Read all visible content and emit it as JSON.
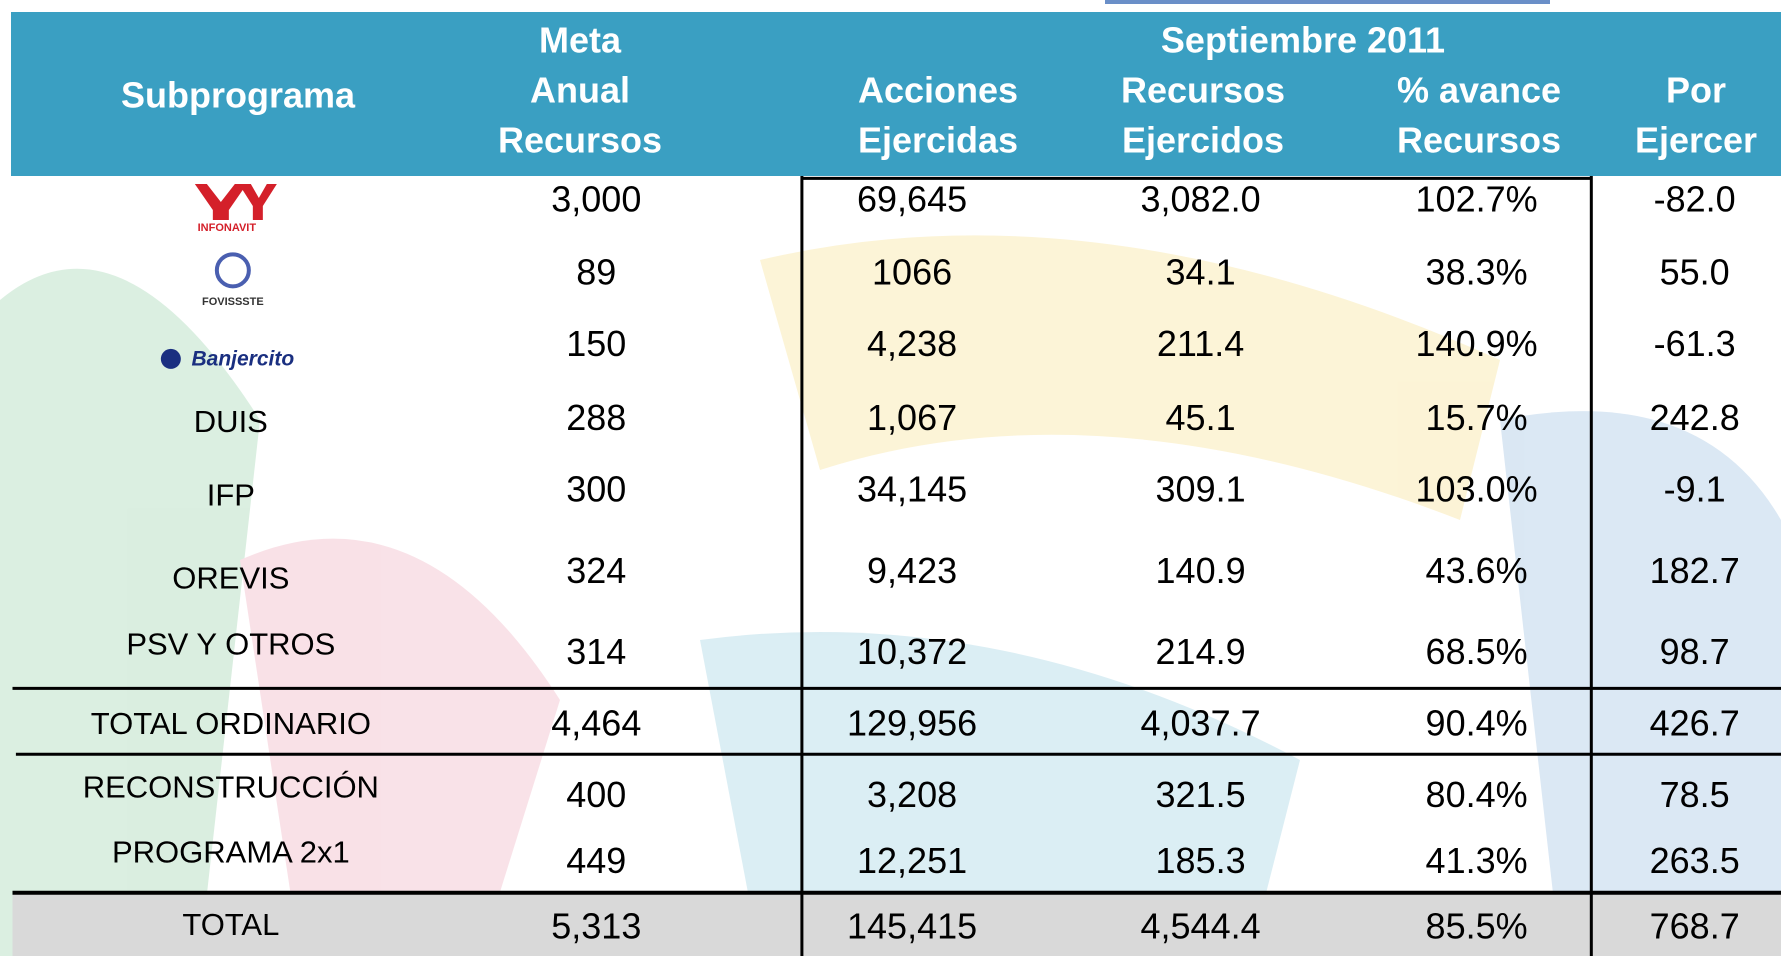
{
  "header": {
    "subprograma": "Subprograma",
    "meta": [
      "Meta",
      "Anual",
      "Recursos"
    ],
    "group": "Septiembre 2011",
    "acciones": [
      "Acciones",
      "Ejercidas"
    ],
    "recursos": [
      "Recursos",
      "Ejercidos"
    ],
    "avance": [
      "% avance",
      "Recursos"
    ],
    "por": [
      "Por",
      "Ejercer"
    ]
  },
  "table": {
    "rows": [
      [
        "INFONAVIT",
        "3,000",
        "69,645",
        "3,082.0",
        "102.7%",
        "-82.0"
      ],
      [
        "FOVISSSTE",
        "89",
        "1066",
        "34.1",
        "38.3%",
        "55.0"
      ],
      [
        "Banjercito",
        "150",
        "4,238",
        "211.4",
        "140.9%",
        "-61.3"
      ],
      [
        "DUIS",
        "288",
        "1,067",
        "45.1",
        "15.7%",
        "242.8"
      ],
      [
        "IFP",
        "300",
        "34,145",
        "309.1",
        "103.0%",
        "-9.1"
      ],
      [
        "OREVIS",
        "324",
        "9,423",
        "140.9",
        "43.6%",
        "182.7"
      ],
      [
        "PSV Y OTROS",
        "314",
        "10,372",
        "214.9",
        "68.5%",
        "98.7"
      ],
      [
        "TOTAL ORDINARIO",
        "4,464",
        "129,956",
        "4,037.7",
        "90.4%",
        "426.7"
      ],
      [
        "RECONSTRUCCIÓN",
        "400",
        "3,208",
        "321.5",
        "80.4%",
        "78.5"
      ],
      [
        "PROGRAMA 2x1",
        "449",
        "12,251",
        "185.3",
        "41.3%",
        "263.5"
      ],
      [
        "TOTAL",
        "5,313",
        "145,415",
        "4,544.4",
        "85.5%",
        "768.7"
      ]
    ]
  }
}
